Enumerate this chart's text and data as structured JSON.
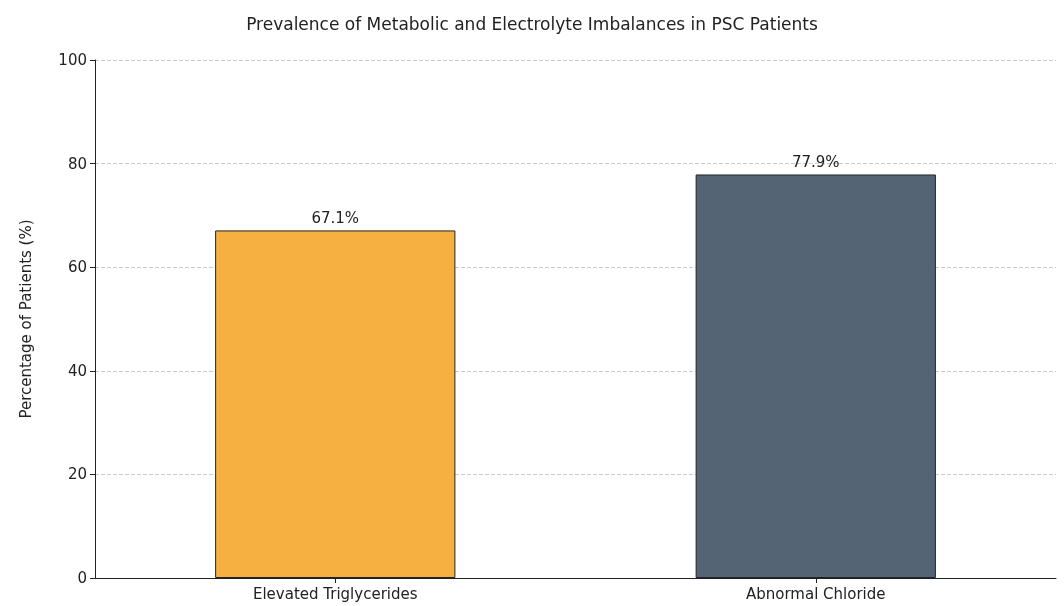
{
  "chart_data": {
    "type": "bar",
    "title": "Prevalence of Metabolic and Electrolyte Imbalances in PSC Patients",
    "ylabel": "Percentage of Patients (%)",
    "categories": [
      "Elevated Triglycerides",
      "Abnormal Chloride"
    ],
    "values": [
      67.1,
      77.9
    ],
    "value_labels": [
      "67.1%",
      "77.9%"
    ],
    "colors": [
      "#f5b041",
      "#546474"
    ],
    "ylim": [
      0,
      100
    ],
    "yticks": [
      0,
      20,
      40,
      60,
      80,
      100
    ],
    "grid": "y"
  }
}
